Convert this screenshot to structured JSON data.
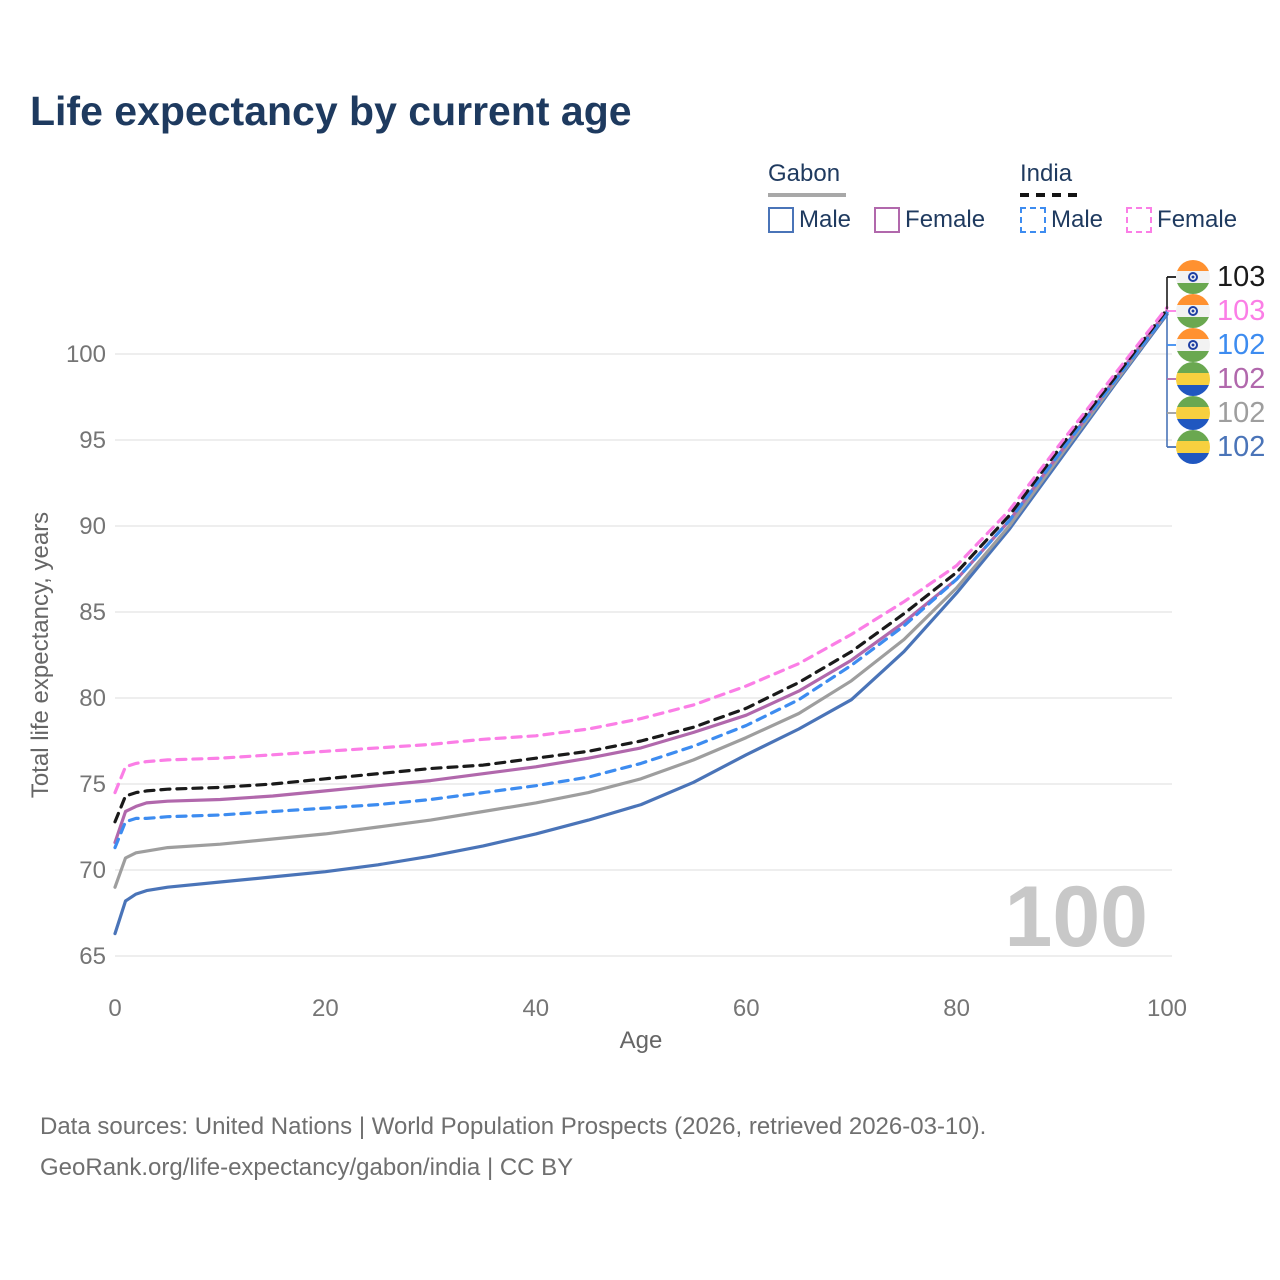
{
  "title": "Life expectancy by current age",
  "legend": {
    "groups": [
      {
        "label": "Gabon",
        "line_style": "solid",
        "underline_color": "#a8a8a8",
        "items": [
          {
            "label": "Male",
            "color": "#4a74b8",
            "dashed": false
          },
          {
            "label": "Female",
            "color": "#b168ac",
            "dashed": false
          }
        ]
      },
      {
        "label": "India",
        "line_style": "dashed",
        "underline_color": "#141414",
        "items": [
          {
            "label": "Male",
            "color": "#3d8cf0",
            "dashed": true
          },
          {
            "label": "Female",
            "color": "#fb7ee6",
            "dashed": true
          }
        ]
      }
    ]
  },
  "chart_data": {
    "type": "line",
    "title": "Life expectancy by current age",
    "xlabel": "Age",
    "ylabel": "Total life expectancy, years",
    "x_ticks": [
      0,
      20,
      40,
      60,
      80,
      100
    ],
    "y_ticks": [
      65,
      70,
      75,
      80,
      85,
      90,
      95,
      100
    ],
    "xlim": [
      0,
      100
    ],
    "ylim": [
      65,
      100
    ],
    "grid": "horizontal-only",
    "legend_position": "top-right",
    "watermark": "100",
    "ages": [
      0,
      1,
      2,
      3,
      5,
      10,
      15,
      20,
      25,
      30,
      35,
      40,
      45,
      50,
      55,
      60,
      65,
      70,
      75,
      80,
      85,
      90,
      95,
      100
    ],
    "series": [
      {
        "name": "India Both sexes",
        "country": "India",
        "sex": "Both",
        "color": "#1a1a1a",
        "dashed": true,
        "flag": "india",
        "end_label": "103",
        "values": [
          72.8,
          74.3,
          74.5,
          74.6,
          74.7,
          74.8,
          75.0,
          75.3,
          75.6,
          75.9,
          76.1,
          76.5,
          76.9,
          77.5,
          78.3,
          79.4,
          80.9,
          82.7,
          84.9,
          87.3,
          90.6,
          94.7,
          98.6,
          102.6
        ]
      },
      {
        "name": "India Female",
        "country": "India",
        "sex": "Female",
        "color": "#fb7ee6",
        "dashed": true,
        "flag": "india",
        "end_label": "103",
        "values": [
          74.5,
          76.0,
          76.2,
          76.3,
          76.4,
          76.5,
          76.7,
          76.9,
          77.1,
          77.3,
          77.6,
          77.8,
          78.2,
          78.8,
          79.6,
          80.7,
          82.0,
          83.7,
          85.6,
          87.7,
          90.9,
          94.9,
          98.8,
          102.7
        ]
      },
      {
        "name": "India Male",
        "country": "India",
        "sex": "Male",
        "color": "#3d8cf0",
        "dashed": true,
        "flag": "india",
        "end_label": "102",
        "values": [
          71.3,
          72.8,
          73.0,
          73.0,
          73.1,
          73.2,
          73.4,
          73.6,
          73.8,
          74.1,
          74.5,
          74.9,
          75.4,
          76.2,
          77.2,
          78.4,
          79.9,
          81.9,
          84.2,
          86.9,
          90.3,
          94.4,
          98.4,
          102.4
        ]
      },
      {
        "name": "Gabon Female",
        "country": "Gabon",
        "sex": "Female",
        "color": "#b168ac",
        "dashed": false,
        "flag": "gabon",
        "end_label": "102",
        "values": [
          71.6,
          73.4,
          73.7,
          73.9,
          74.0,
          74.1,
          74.3,
          74.6,
          74.9,
          75.2,
          75.6,
          76.0,
          76.5,
          77.1,
          78.0,
          79.0,
          80.4,
          82.2,
          84.4,
          86.9,
          90.3,
          94.4,
          98.5,
          102.5
        ]
      },
      {
        "name": "Gabon Both sexes",
        "country": "Gabon",
        "sex": "Both",
        "color": "#9e9e9e",
        "dashed": false,
        "flag": "gabon",
        "end_label": "102",
        "values": [
          69.0,
          70.7,
          71.0,
          71.1,
          71.3,
          71.5,
          71.8,
          72.1,
          72.5,
          72.9,
          73.4,
          73.9,
          74.5,
          75.3,
          76.4,
          77.7,
          79.1,
          81.0,
          83.4,
          86.4,
          90.0,
          94.2,
          98.3,
          102.4
        ]
      },
      {
        "name": "Gabon Male",
        "country": "Gabon",
        "sex": "Male",
        "color": "#4a74b8",
        "dashed": false,
        "flag": "gabon",
        "end_label": "102",
        "values": [
          66.3,
          68.2,
          68.6,
          68.8,
          69.0,
          69.3,
          69.6,
          69.9,
          70.3,
          70.8,
          71.4,
          72.1,
          72.9,
          73.8,
          75.1,
          76.7,
          78.2,
          79.9,
          82.7,
          86.1,
          89.8,
          94.0,
          98.2,
          102.3
        ]
      }
    ]
  },
  "footer": {
    "line1": "Data sources: United Nations | World Population Prospects (2026, retrieved 2026-03-10).",
    "line2": "GeoRank.org/life-expectancy/gabon/india | CC BY"
  }
}
